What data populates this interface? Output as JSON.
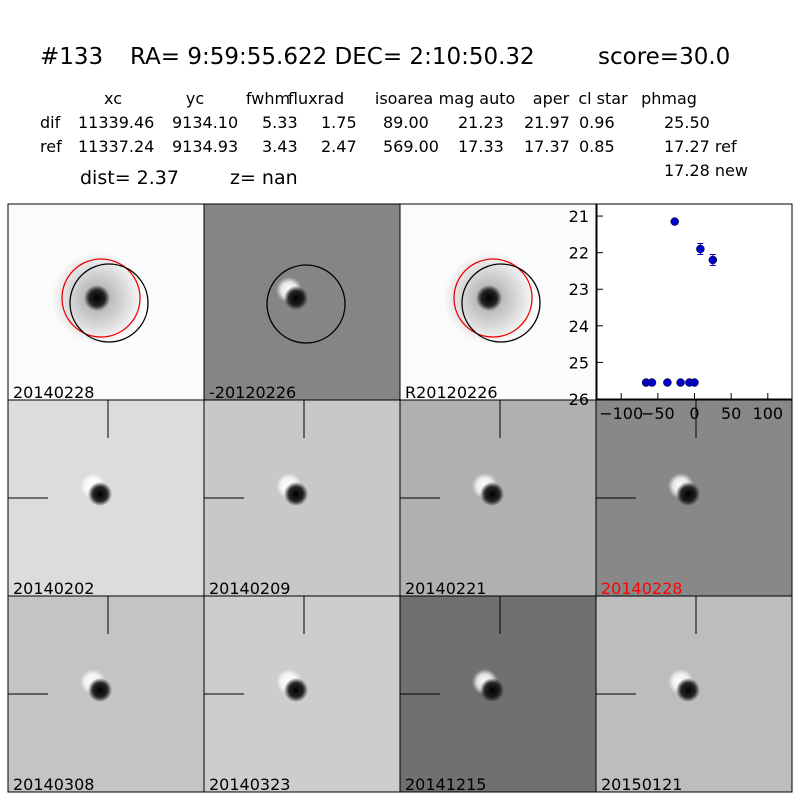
{
  "header": {
    "id": "#133",
    "coords": "RA= 9:59:55.622 DEC= 2:10:50.32",
    "score": "score=30.0",
    "dist": "dist=  2.37",
    "z": "z=   nan"
  },
  "table": {
    "columns": [
      "xc",
      "yc",
      "fwhm",
      "fluxrad",
      "isoarea",
      "mag auto",
      "aper",
      "cl star",
      "phmag"
    ],
    "rows": [
      [
        "dif",
        "11339.46",
        "9134.10",
        "5.33",
        "1.75",
        "89.00",
        "21.23",
        "21.97",
        "0.96",
        "25.50"
      ],
      [
        "ref",
        "11337.24",
        "9134.93",
        "3.43",
        "2.47",
        "569.00",
        "17.33",
        "17.37",
        "0.85",
        "17.27 ref"
      ]
    ],
    "extra": "17.28 new"
  },
  "panels": [
    {
      "label": "20140228"
    },
    {
      "label": "-20120226"
    },
    {
      "label": "R20120226"
    },
    {
      "label": "20140202"
    },
    {
      "label": "20140209"
    },
    {
      "label": "20140221"
    },
    {
      "label": "20140228",
      "color": "#ff0000"
    },
    {
      "label": "20140308"
    },
    {
      "label": "20140323"
    },
    {
      "label": "20141215"
    },
    {
      "label": "20150121"
    }
  ],
  "chart_data": {
    "type": "scatter",
    "color": "#0000cc",
    "x": [
      -66,
      -58,
      -37,
      -27,
      -19,
      -7,
      0,
      8,
      25
    ],
    "y": [
      25.55,
      25.55,
      25.55,
      21.15,
      25.55,
      25.55,
      25.55,
      21.9,
      22.2
    ],
    "yerr": [
      0.05,
      0.05,
      0.05,
      0.05,
      0.05,
      0.05,
      0.05,
      0.15,
      0.15
    ],
    "xlim": [
      -133,
      133
    ],
    "ylim": [
      26,
      20.67
    ],
    "xticks": [
      {
        "value": -100,
        "label": "−100"
      },
      {
        "value": -50,
        "label": "−50"
      },
      0,
      50,
      100
    ],
    "yticks": [
      21,
      22,
      23,
      24,
      25,
      26
    ]
  }
}
